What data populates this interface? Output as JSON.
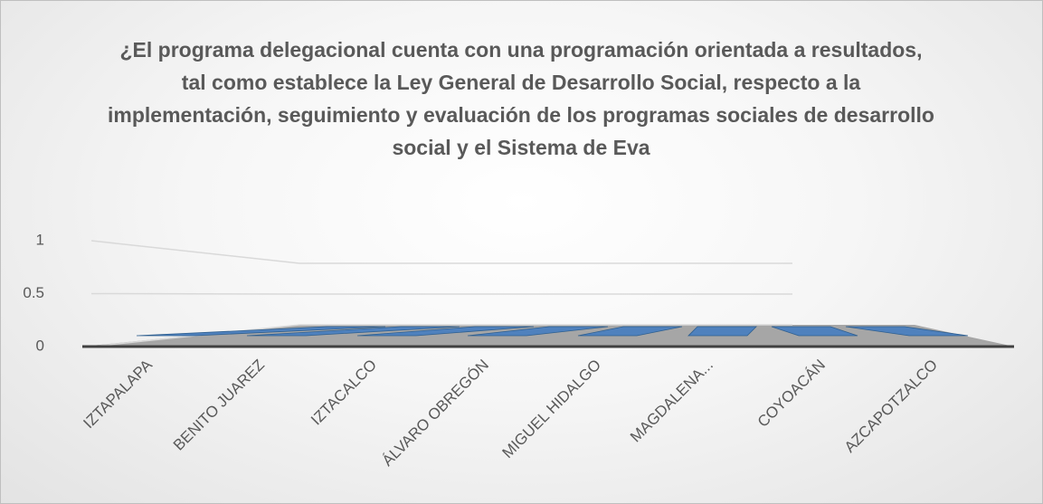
{
  "chart_data": {
    "type": "bar3d",
    "title": "¿El programa delegacional cuenta con una programación orientada a resultados, tal como establece la Ley General de Desarrollo Social, respecto a la implementación, seguimiento y evaluación de los programas sociales de desarrollo social y el Sistema de Eva",
    "categories": [
      "IZTAPALAPA",
      "BENITO JUAREZ",
      "IZTACALCO",
      "ÁLVARO OBREGÓN",
      "MIGUEL HIDALGO",
      "MAGDALENA...",
      "COYOACÁN",
      "AZCAPOTZALCO"
    ],
    "values": [
      0,
      0,
      0,
      0,
      0,
      0,
      0,
      0
    ],
    "color": "#4f81bd",
    "ylim": [
      0,
      1
    ],
    "yticks": [
      0,
      0.5,
      1
    ],
    "grid": true
  }
}
